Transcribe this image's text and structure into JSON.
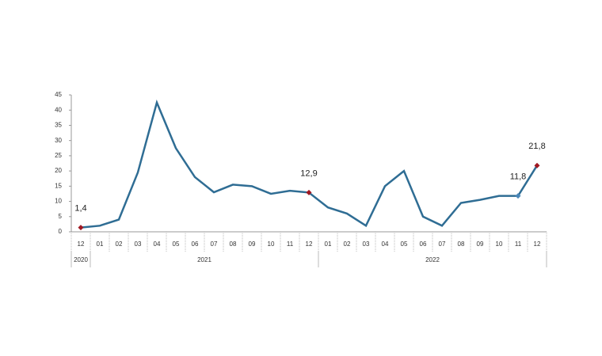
{
  "chart_data": {
    "type": "line",
    "categories": [
      "12",
      "01",
      "02",
      "03",
      "04",
      "05",
      "06",
      "07",
      "08",
      "09",
      "10",
      "11",
      "12",
      "01",
      "02",
      "03",
      "04",
      "05",
      "06",
      "07",
      "08",
      "09",
      "10",
      "11",
      "12"
    ],
    "groups": [
      {
        "label": "2020",
        "span": 1
      },
      {
        "label": "2021",
        "span": 12
      },
      {
        "label": "2022",
        "span": 12
      }
    ],
    "values": [
      1.4,
      2.0,
      4.0,
      19.5,
      42.5,
      27.5,
      18.0,
      13.0,
      15.5,
      15.0,
      12.5,
      13.5,
      12.9,
      8.0,
      6.0,
      2.0,
      15.0,
      20.0,
      5.0,
      2.0,
      9.5,
      10.5,
      11.8,
      11.8,
      21.8
    ],
    "value_labels": [
      "1,4",
      null,
      null,
      null,
      null,
      null,
      null,
      null,
      null,
      null,
      null,
      null,
      "12,9",
      null,
      null,
      null,
      null,
      null,
      null,
      null,
      null,
      null,
      null,
      "11,8",
      "21,8"
    ],
    "marker_colors": [
      "#a01822",
      null,
      null,
      null,
      null,
      null,
      null,
      null,
      null,
      null,
      null,
      null,
      "#a01822",
      null,
      null,
      null,
      null,
      null,
      null,
      null,
      null,
      null,
      null,
      "#4a86b8",
      "#a01822"
    ],
    "color": "#2f6d94",
    "ylim": [
      0,
      45
    ],
    "yticks": [
      0,
      5,
      10,
      15,
      20,
      25,
      30,
      35,
      40,
      45
    ],
    "grid": false
  }
}
